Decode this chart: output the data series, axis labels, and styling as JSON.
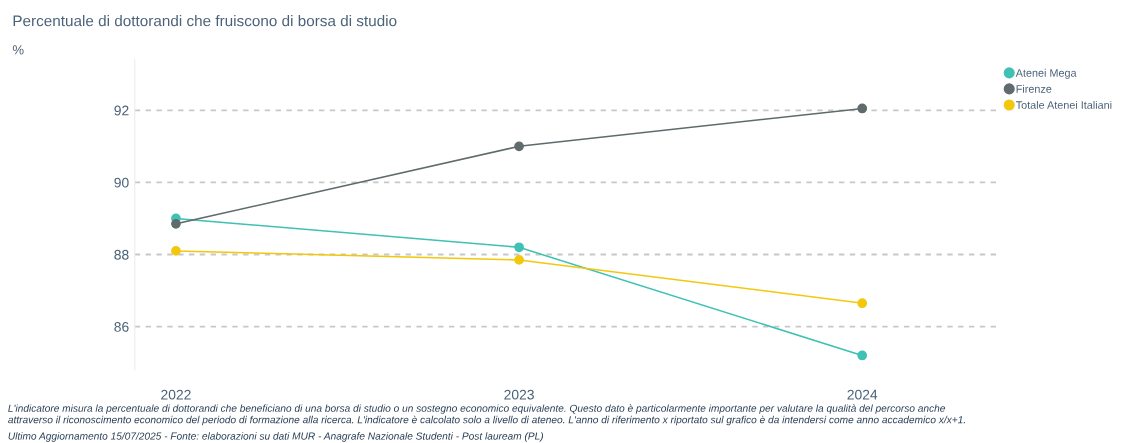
{
  "chart_data": {
    "type": "line",
    "title": "Percentuale di dottorandi che fruiscono di borsa di studio",
    "categories": [
      "2022",
      "2023",
      "2024"
    ],
    "series": [
      {
        "name": "Atenei Mega",
        "color": "#3fc1b4",
        "values": [
          89.0,
          88.2,
          85.2
        ]
      },
      {
        "name": "Firenze",
        "color": "#5f6b6d",
        "values": [
          88.85,
          91.0,
          92.05
        ]
      },
      {
        "name": "Totale Atenei Italiani",
        "color": "#f2c80f",
        "values": [
          88.1,
          87.85,
          86.65
        ]
      }
    ],
    "ylim": [
      84.8,
      93.4
    ],
    "yticks": [
      86,
      88,
      90,
      92
    ],
    "grid": "y",
    "legend": "top right",
    "marker": "circle",
    "line_style": "solid",
    "annotations": [
      "%",
      "L'indicatore misura la percentuale di dottorandi che beneficiano di una borsa di studio o un sostegno economico equivalente. Questo dato è particolarmente importante per valutare la qualità del percorso anche\nattraverso il riconoscimento economico del periodo di formazione alla ricerca. L'indicatore è calcolato solo a livello di ateneo. L'anno di riferimento x riportato sul grafico è da intendersi come anno accademico x/x+1.",
      "Ultimo Aggiornamento 15/07/2025 - Fonte: elaborazioni su dati MUR - Anagrafe Nazionale Studenti - Post lauream (PL)"
    ]
  }
}
